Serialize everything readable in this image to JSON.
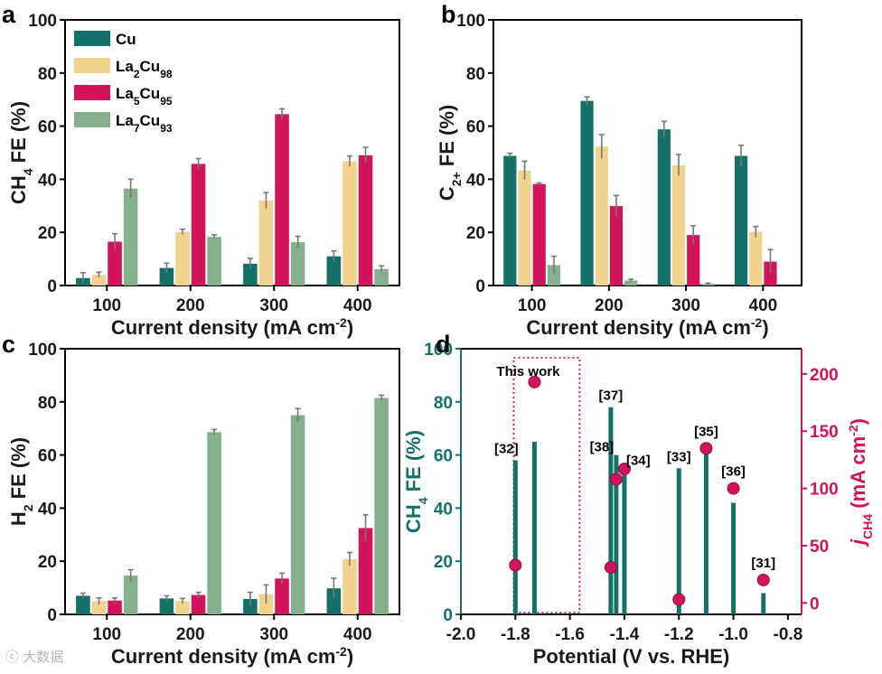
{
  "panels": [
    {
      "letter": "a",
      "xlabel": "Current density (mA cm",
      "xlabel_sup": "-2",
      "xlabel_tail": ")",
      "ylabel": {
        "pre": "CH",
        "sub": "4",
        "post": " FE (%)"
      }
    },
    {
      "letter": "b",
      "xlabel": "Current density (mA cm",
      "xlabel_sup": "-2",
      "xlabel_tail": ")",
      "ylabel": {
        "pre": "C",
        "sub": "2+",
        "post": " FE (%)"
      }
    },
    {
      "letter": "c",
      "xlabel": "Current density (mA cm",
      "xlabel_sup": "-2",
      "xlabel_tail": ")",
      "ylabel": {
        "pre": "H",
        "sub": "2",
        "post": " FE (%)"
      }
    },
    {
      "letter": "d",
      "xlabel": "Potential (V vs. RHE)",
      "ylabel": {
        "pre": "CH",
        "sub": "4",
        "post": " FE (%)"
      },
      "ylabel_right": {
        "pre": "j",
        "sub": "CH4",
        "post": " (mA cm",
        "sup": "-2",
        "tail": ")"
      }
    }
  ],
  "legend": [
    {
      "name": "Cu",
      "base": "Cu",
      "sub": "",
      "color": "#13716a"
    },
    {
      "name": "La2Cu98",
      "base": "La",
      "sub1": "2",
      "mid": "Cu",
      "sub": "98",
      "color": "#f0d38c"
    },
    {
      "name": "La5Cu95",
      "base": "La",
      "sub1": "5",
      "mid": "Cu",
      "sub": "95",
      "color": "#d4145a"
    },
    {
      "name": "La7Cu93",
      "base": "La",
      "sub1": "7",
      "mid": "Cu",
      "sub": "93",
      "color": "#86b08b"
    }
  ],
  "watermark": "大数据",
  "watermark_extra": "ⓒ",
  "chart_data": [
    {
      "type": "bar",
      "id": "a",
      "title": "",
      "xlabel": "Current density (mA cm-2)",
      "ylabel": "CH4 FE (%)",
      "ylim": [
        0,
        100
      ],
      "categories": [
        "100",
        "200",
        "300",
        "400"
      ],
      "yticks": [
        0,
        20,
        40,
        60,
        80,
        100
      ],
      "series": [
        {
          "name": "Cu",
          "values": [
            2.8,
            6.6,
            8.2,
            11.0
          ],
          "errors": [
            2,
            1.8,
            2,
            2
          ]
        },
        {
          "name": "La2Cu98",
          "values": [
            4.0,
            20.2,
            32.0,
            46.8
          ],
          "errors": [
            1,
            1,
            3,
            2
          ]
        },
        {
          "name": "La5Cu95",
          "values": [
            16.5,
            45.8,
            64.5,
            49.0
          ],
          "errors": [
            3,
            2,
            2,
            3
          ]
        },
        {
          "name": "La7Cu93",
          "values": [
            36.5,
            18.3,
            16.3,
            6.2
          ],
          "errors": [
            3.5,
            0.8,
            2.2,
            1.2
          ]
        }
      ]
    },
    {
      "type": "bar",
      "id": "b",
      "title": "",
      "xlabel": "Current density (mA cm-2)",
      "ylabel": "C2+ FE (%)",
      "ylim": [
        0,
        100
      ],
      "categories": [
        "100",
        "200",
        "300",
        "400"
      ],
      "yticks": [
        0,
        20,
        40,
        60,
        80,
        100
      ],
      "series": [
        {
          "name": "Cu",
          "values": [
            48.8,
            69.5,
            58.8,
            48.8
          ],
          "errors": [
            1,
            1.5,
            3,
            4
          ]
        },
        {
          "name": "La2Cu98",
          "values": [
            43.3,
            52.3,
            45.3,
            20.2
          ],
          "errors": [
            3.5,
            4.5,
            4,
            2
          ]
        },
        {
          "name": "La5Cu95",
          "values": [
            38.2,
            29.9,
            19.0,
            9.0
          ],
          "errors": [
            0.4,
            4,
            3.5,
            4.5
          ]
        },
        {
          "name": "La7Cu93",
          "values": [
            7.7,
            1.9,
            0.6,
            0
          ],
          "errors": [
            3.3,
            0.5,
            0.3,
            0
          ]
        }
      ]
    },
    {
      "type": "bar",
      "id": "c",
      "title": "",
      "xlabel": "Current density (mA cm-2)",
      "ylabel": "H2 FE (%)",
      "ylim": [
        0,
        100
      ],
      "categories": [
        "100",
        "200",
        "300",
        "400"
      ],
      "yticks": [
        0,
        20,
        40,
        60,
        80,
        100
      ],
      "series": [
        {
          "name": "Cu",
          "values": [
            7.0,
            6.0,
            5.8,
            9.8
          ],
          "errors": [
            1,
            1,
            2.5,
            3.8
          ]
        },
        {
          "name": "La2Cu98",
          "values": [
            5.0,
            5.0,
            7.6,
            20.8
          ],
          "errors": [
            1.2,
            1,
            3.5,
            2.5
          ]
        },
        {
          "name": "La5Cu95",
          "values": [
            5.2,
            7.3,
            13.5,
            32.5
          ],
          "errors": [
            1,
            1,
            2,
            5
          ]
        },
        {
          "name": "La7Cu93",
          "values": [
            14.6,
            68.6,
            75.0,
            81.5
          ],
          "errors": [
            2.2,
            1,
            2.5,
            1
          ]
        }
      ]
    },
    {
      "type": "bar+scatter",
      "id": "d",
      "title": "",
      "xlabel": "Potential (V vs. RHE)",
      "ylabel": "CH4 FE (%)",
      "ylabel_right": "jCH4 (mA cm-2)",
      "xlim": [
        -2.0,
        -0.75
      ],
      "ylim": [
        0,
        100
      ],
      "ylim_right": [
        -10,
        222
      ],
      "xticks": [
        -2.0,
        -1.8,
        -1.6,
        -1.4,
        -1.2,
        -1.0,
        -0.8
      ],
      "xtick_labels": [
        "-2.0",
        "-1.8",
        "-1.6",
        "-1.4",
        "-1.2",
        "-1.0",
        "-0.8"
      ],
      "yticks": [
        0,
        20,
        40,
        60,
        80,
        100
      ],
      "yticks_right": [
        0,
        50,
        100,
        150,
        200
      ],
      "points": [
        {
          "label": "[32]",
          "x": -1.8,
          "fe": 58,
          "j": 33
        },
        {
          "label": "This work",
          "x": -1.73,
          "fe": 65,
          "j": 193
        },
        {
          "label": "[37]",
          "x": -1.45,
          "fe": 78,
          "j": 31
        },
        {
          "label": "[38]",
          "x": -1.43,
          "fe": 60,
          "j": 108
        },
        {
          "label": "[34]",
          "x": -1.4,
          "fe": 55,
          "j": 117
        },
        {
          "label": "[33]",
          "x": -1.2,
          "fe": 55,
          "j": 3
        },
        {
          "label": "[35]",
          "x": -1.1,
          "fe": 64,
          "j": 135
        },
        {
          "label": "[36]",
          "x": -1.0,
          "fe": 42,
          "j": 100
        },
        {
          "label": "[31]",
          "x": -0.89,
          "fe": 8,
          "j": 20
        }
      ],
      "bar_color": "#13716a",
      "point_color": "#d4145a"
    }
  ]
}
